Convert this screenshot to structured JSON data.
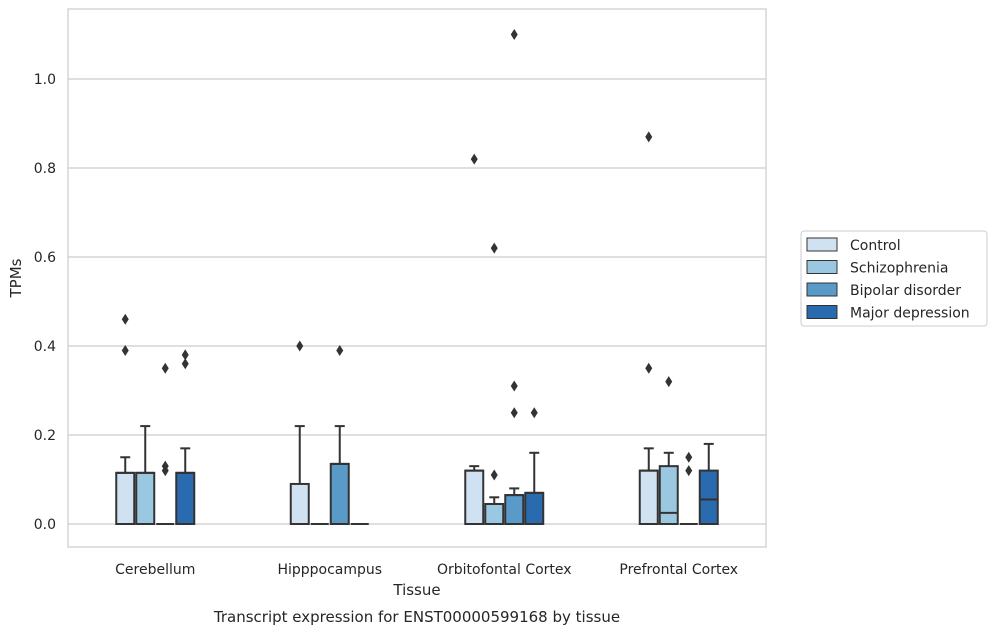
{
  "chart_data": {
    "type": "box",
    "title": "",
    "caption": "Transcript expression for ENST00000599168 by tissue",
    "xlabel": "Tissue",
    "ylabel": "TPMs",
    "ylim": [
      -0.05,
      1.16
    ],
    "yticks": [
      "0.0",
      "0.2",
      "0.4",
      "0.6",
      "0.8",
      "1.0"
    ],
    "grid": true,
    "legend_position": "right",
    "categories": [
      "Cerebellum",
      "Hipppocampus",
      "Orbitofontal Cortex",
      "Prefrontal Cortex"
    ],
    "series": [
      {
        "name": "Control",
        "color": "#d0e1f2",
        "boxes": [
          {
            "q1": 0,
            "median": 0.115,
            "q3": 0.115,
            "whisker_low": 0,
            "whisker_high": 0.15,
            "outliers": [
              0.39,
              0.46
            ]
          },
          {
            "q1": 0,
            "median": 0,
            "q3": 0.09,
            "whisker_low": 0,
            "whisker_high": 0.22,
            "outliers": [
              0.4
            ]
          },
          {
            "q1": 0,
            "median": 0.12,
            "q3": 0.12,
            "whisker_low": 0,
            "whisker_high": 0.13,
            "outliers": [
              0.82
            ]
          },
          {
            "q1": 0,
            "median": 0.12,
            "q3": 0.12,
            "whisker_low": 0,
            "whisker_high": 0.17,
            "outliers": [
              0.35,
              0.87
            ]
          }
        ]
      },
      {
        "name": "Schizophrenia",
        "color": "#9ac8e0",
        "boxes": [
          {
            "q1": 0,
            "median": 0.115,
            "q3": 0.115,
            "whisker_low": 0,
            "whisker_high": 0.22,
            "outliers": []
          },
          {
            "q1": 0,
            "median": 0,
            "q3": 0,
            "whisker_low": 0,
            "whisker_high": 0,
            "outliers": []
          },
          {
            "q1": 0,
            "median": 0.045,
            "q3": 0.045,
            "whisker_low": 0,
            "whisker_high": 0.06,
            "outliers": [
              0.11,
              0.62
            ]
          },
          {
            "q1": 0,
            "median": 0.025,
            "q3": 0.13,
            "whisker_low": 0,
            "whisker_high": 0.16,
            "outliers": [
              0.32
            ]
          }
        ]
      },
      {
        "name": "Bipolar disorder",
        "color": "#5a9ac8",
        "boxes": [
          {
            "q1": 0,
            "median": 0,
            "q3": 0,
            "whisker_low": 0,
            "whisker_high": 0,
            "outliers": [
              0.12,
              0.13,
              0.35
            ]
          },
          {
            "q1": 0,
            "median": 0.135,
            "q3": 0.135,
            "whisker_low": 0,
            "whisker_high": 0.22,
            "outliers": [
              0.39
            ]
          },
          {
            "q1": 0,
            "median": 0.065,
            "q3": 0.065,
            "whisker_low": 0,
            "whisker_high": 0.08,
            "outliers": [
              0.25,
              0.31,
              1.1
            ]
          },
          {
            "q1": 0,
            "median": 0,
            "q3": 0,
            "whisker_low": 0,
            "whisker_high": 0,
            "outliers": [
              0.12,
              0.15
            ]
          }
        ]
      },
      {
        "name": "Major depression",
        "color": "#2a6bb0",
        "boxes": [
          {
            "q1": 0,
            "median": 0.115,
            "q3": 0.115,
            "whisker_low": 0,
            "whisker_high": 0.17,
            "outliers": [
              0.36,
              0.38
            ]
          },
          {
            "q1": 0,
            "median": 0,
            "q3": 0,
            "whisker_low": 0,
            "whisker_high": 0,
            "outliers": []
          },
          {
            "q1": 0,
            "median": 0.07,
            "q3": 0.07,
            "whisker_low": 0,
            "whisker_high": 0.16,
            "outliers": [
              0.25
            ]
          },
          {
            "q1": 0,
            "median": 0.055,
            "q3": 0.12,
            "whisker_low": 0,
            "whisker_high": 0.18,
            "outliers": []
          }
        ]
      }
    ]
  }
}
